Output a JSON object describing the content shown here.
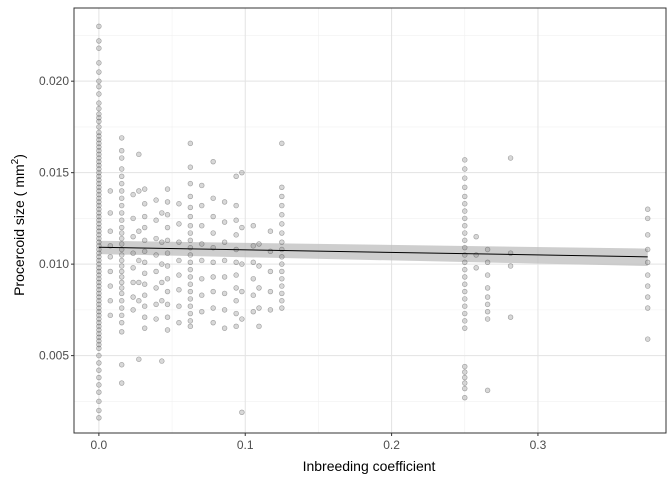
{
  "chart_data": {
    "type": "scatter",
    "title": "",
    "xlabel": "Inbreeding coefficient",
    "ylabel": "Procercoid size (",
    "ylabel_unit": "mm",
    "ylabel_unit_sup": "2",
    "ylabel_close": ")",
    "xlim": [
      -0.017,
      0.3875
    ],
    "ylim": [
      0.00077,
      0.024
    ],
    "x_ticks": [
      0.0,
      0.1,
      0.2,
      0.3
    ],
    "x_tick_labels": [
      "0.0",
      "0.1",
      "0.2",
      "0.3"
    ],
    "y_ticks": [
      0.005,
      0.01,
      0.015,
      0.02
    ],
    "y_tick_labels": [
      "0.005",
      "0.010",
      "0.015",
      "0.020"
    ],
    "grid": true,
    "legend": "none",
    "point_color": "#7f7f7f",
    "line_color": "#000000",
    "band_color": "#bdbdbd",
    "fit": {
      "x": [
        0.0,
        0.375
      ],
      "y": [
        0.01092,
        0.0104
      ],
      "ci_low": [
        0.01055,
        0.0099
      ],
      "ci_high": [
        0.01128,
        0.01085
      ]
    },
    "groups": [
      {
        "x": 0.0,
        "y": [
          0.023,
          0.0222,
          0.0218,
          0.021,
          0.0205,
          0.02,
          0.0197,
          0.0193,
          0.0188,
          0.0185,
          0.0182,
          0.018,
          0.0178,
          0.0175,
          0.0172,
          0.017,
          0.0168,
          0.0166,
          0.0164,
          0.0162,
          0.016,
          0.0158,
          0.0156,
          0.0154,
          0.0152,
          0.015,
          0.0148,
          0.0146,
          0.0144,
          0.0142,
          0.014,
          0.0138,
          0.0136,
          0.0134,
          0.0132,
          0.013,
          0.0128,
          0.0126,
          0.0124,
          0.0122,
          0.012,
          0.0118,
          0.0116,
          0.0114,
          0.0112,
          0.011,
          0.0108,
          0.0106,
          0.0104,
          0.0102,
          0.01,
          0.0098,
          0.0096,
          0.0094,
          0.0092,
          0.009,
          0.0088,
          0.0086,
          0.0084,
          0.0082,
          0.008,
          0.0078,
          0.0076,
          0.0074,
          0.0072,
          0.007,
          0.0068,
          0.0066,
          0.0064,
          0.0062,
          0.006,
          0.0058,
          0.0056,
          0.0054,
          0.005,
          0.0046,
          0.0042,
          0.0038,
          0.0034,
          0.003,
          0.0025,
          0.002,
          0.0016
        ]
      },
      {
        "x": 0.0156,
        "y": [
          0.0169,
          0.0162,
          0.0158,
          0.0152,
          0.0148,
          0.0144,
          0.014,
          0.0136,
          0.0132,
          0.0128,
          0.0124,
          0.012,
          0.0117,
          0.0114,
          0.0111,
          0.0108,
          0.0105,
          0.0102,
          0.0099,
          0.0096,
          0.0093,
          0.009,
          0.0087,
          0.0084,
          0.008,
          0.0076,
          0.0072,
          0.0068,
          0.0063,
          0.0045,
          0.0035
        ]
      },
      {
        "x": 0.0078,
        "y": [
          0.014,
          0.0128,
          0.0118,
          0.011,
          0.0104,
          0.0096,
          0.0088,
          0.008,
          0.0072
        ]
      },
      {
        "x": 0.0234,
        "y": [
          0.0138,
          0.0125,
          0.0115,
          0.0106,
          0.0098,
          0.009,
          0.0082,
          0.0075
        ]
      },
      {
        "x": 0.0273,
        "y": [
          0.016,
          0.014,
          0.0118,
          0.0102,
          0.009,
          0.008,
          0.0048
        ]
      },
      {
        "x": 0.0313,
        "y": [
          0.0141,
          0.0133,
          0.0126,
          0.012,
          0.0113,
          0.0107,
          0.0101,
          0.0095,
          0.0089,
          0.0083,
          0.0077,
          0.0071,
          0.0065
        ]
      },
      {
        "x": 0.0391,
        "y": [
          0.0135,
          0.0124,
          0.0114,
          0.0105,
          0.0096,
          0.0087,
          0.0078,
          0.007
        ]
      },
      {
        "x": 0.043,
        "y": [
          0.0128,
          0.0112,
          0.01,
          0.009,
          0.008,
          0.0047
        ]
      },
      {
        "x": 0.0469,
        "y": [
          0.0141,
          0.0134,
          0.0127,
          0.012,
          0.0113,
          0.0106,
          0.0099,
          0.0092,
          0.0085,
          0.0078,
          0.0071,
          0.0064
        ]
      },
      {
        "x": 0.0547,
        "y": [
          0.0133,
          0.0122,
          0.0112,
          0.0102,
          0.0094,
          0.0086,
          0.0077,
          0.0068
        ]
      },
      {
        "x": 0.0625,
        "y": [
          0.0166,
          0.0153,
          0.0144,
          0.0137,
          0.0131,
          0.0126,
          0.0121,
          0.0117,
          0.0113,
          0.0109,
          0.0105,
          0.0101,
          0.0097,
          0.0093,
          0.0089,
          0.0085,
          0.0081,
          0.0077,
          0.0073,
          0.0069,
          0.0066
        ]
      },
      {
        "x": 0.0703,
        "y": [
          0.0143,
          0.0132,
          0.0121,
          0.0111,
          0.0102,
          0.0092,
          0.0083,
          0.0074
        ]
      },
      {
        "x": 0.0781,
        "y": [
          0.0156,
          0.0136,
          0.0126,
          0.0117,
          0.0109,
          0.0101,
          0.0093,
          0.0085,
          0.0076,
          0.0068
        ]
      },
      {
        "x": 0.0859,
        "y": [
          0.0134,
          0.0123,
          0.0112,
          0.0102,
          0.0093,
          0.0084,
          0.0075,
          0.0065
        ]
      },
      {
        "x": 0.0938,
        "y": [
          0.0148,
          0.0132,
          0.0124,
          0.0116,
          0.0108,
          0.0101,
          0.0094,
          0.0087,
          0.008,
          0.0073,
          0.0066
        ]
      },
      {
        "x": 0.0977,
        "y": [
          0.015,
          0.012,
          0.01,
          0.0085,
          0.007,
          0.0019
        ]
      },
      {
        "x": 0.1055,
        "y": [
          0.0121,
          0.011,
          0.0101,
          0.0092,
          0.0083,
          0.0074
        ]
      },
      {
        "x": 0.1094,
        "y": [
          0.0111,
          0.0099,
          0.0087,
          0.0076,
          0.0066
        ]
      },
      {
        "x": 0.1172,
        "y": [
          0.0118,
          0.0107,
          0.0096,
          0.0085,
          0.0075
        ]
      },
      {
        "x": 0.125,
        "y": [
          0.0166,
          0.0142,
          0.0137,
          0.0132,
          0.0127,
          0.0122,
          0.0117,
          0.0112,
          0.0108,
          0.0104,
          0.01,
          0.0096,
          0.0092,
          0.0088,
          0.0084,
          0.008,
          0.0076
        ]
      },
      {
        "x": 0.25,
        "y": [
          0.0157,
          0.0152,
          0.0147,
          0.0142,
          0.0137,
          0.0133,
          0.0129,
          0.0125,
          0.0121,
          0.0117,
          0.0113,
          0.0109,
          0.0105,
          0.0101,
          0.0097,
          0.0093,
          0.0089,
          0.0085,
          0.0081,
          0.0077,
          0.0073,
          0.0069,
          0.0065,
          0.0044,
          0.0041,
          0.0038,
          0.0035,
          0.0032,
          0.0027
        ]
      },
      {
        "x": 0.2578,
        "y": [
          0.0115,
          0.0105,
          0.0098
        ]
      },
      {
        "x": 0.2656,
        "y": [
          0.0108,
          0.0101,
          0.0094,
          0.0087,
          0.0082,
          0.0078,
          0.0074,
          0.007,
          0.0031
        ]
      },
      {
        "x": 0.2813,
        "y": [
          0.0158,
          0.0106,
          0.0099,
          0.0071
        ]
      },
      {
        "x": 0.375,
        "y": [
          0.013,
          0.0125,
          0.0116,
          0.0108,
          0.0101,
          0.0094,
          0.0088,
          0.0082,
          0.0076,
          0.0059
        ]
      }
    ]
  }
}
